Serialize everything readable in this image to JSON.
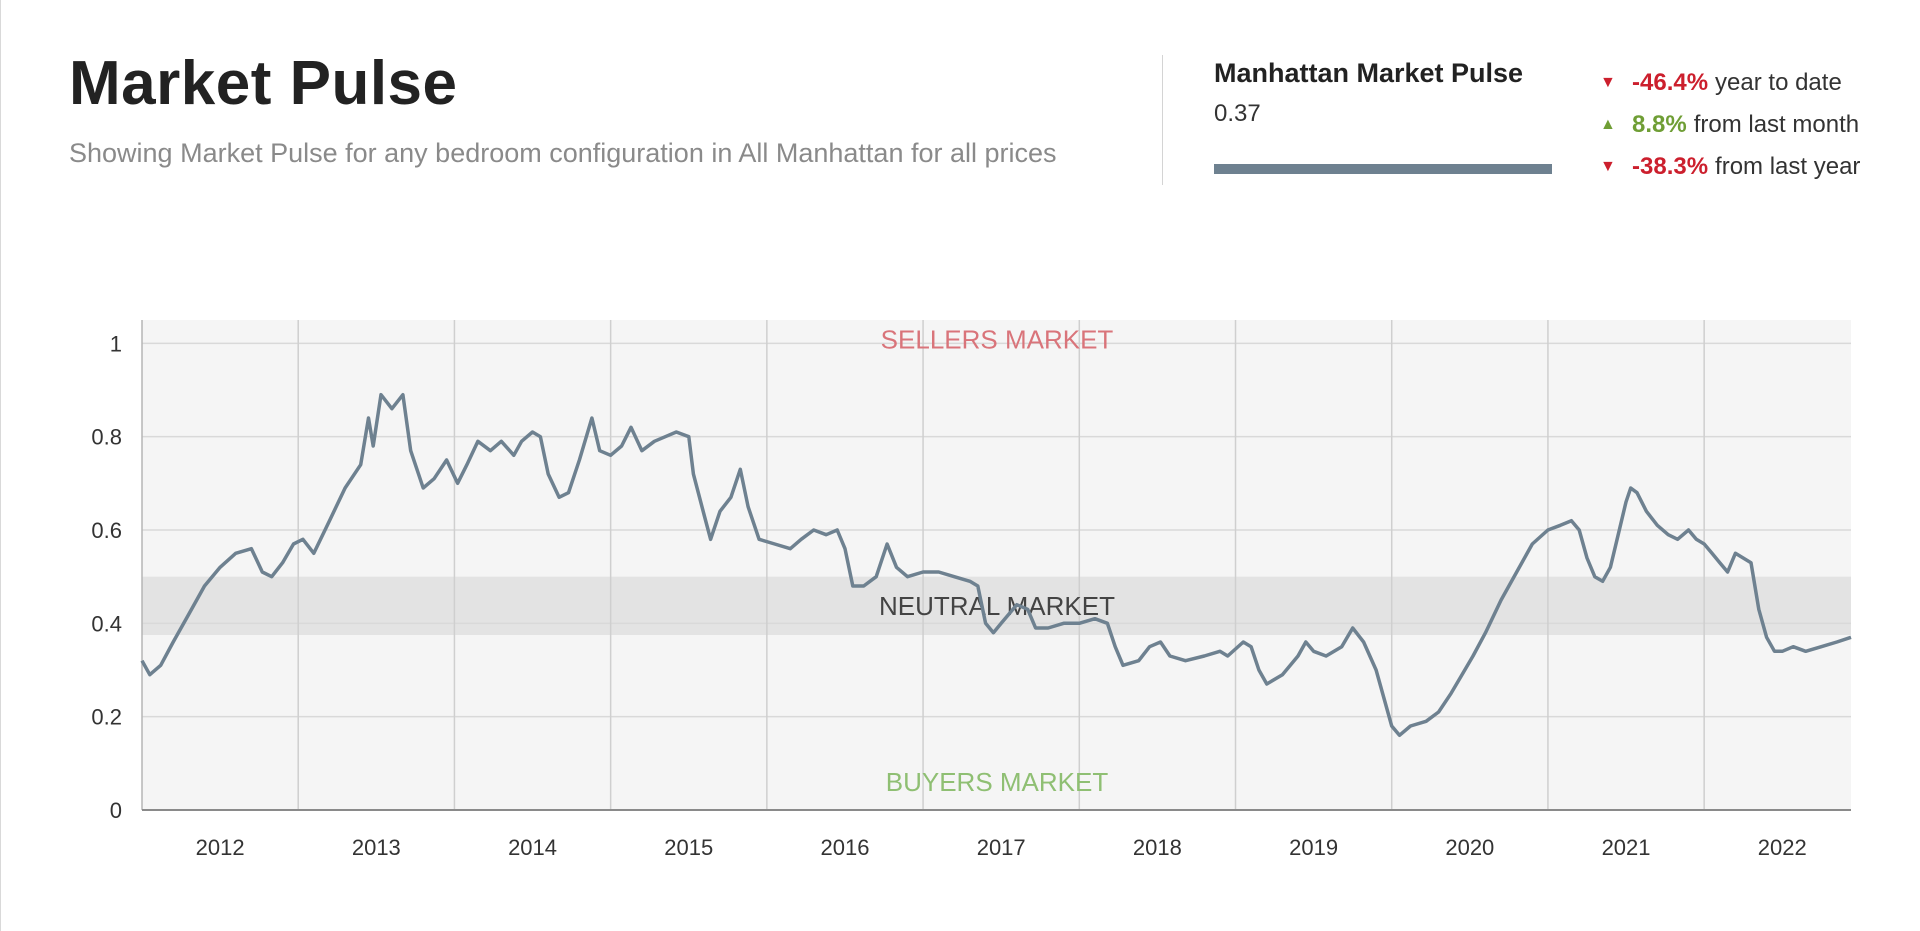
{
  "header": {
    "title": "Market Pulse",
    "subtitle": "Showing Market Pulse for any bedroom configuration in All Manhattan for all prices"
  },
  "summary": {
    "title": "Manhattan Market Pulse",
    "value": "0.37",
    "value_fraction": 0.37,
    "bar_color": "#6e8190",
    "changes": [
      {
        "direction": "down",
        "icon": "down-triangle-icon",
        "percent": "-46.4%",
        "label": "year to date",
        "color": "#cc1f2d"
      },
      {
        "direction": "up",
        "icon": "up-triangle-icon",
        "percent": "8.8%",
        "label": "from last month",
        "color": "#6f9e35"
      },
      {
        "direction": "down",
        "icon": "down-triangle-icon",
        "percent": "-38.3%",
        "label": "from last year",
        "color": "#cc1f2d"
      }
    ]
  },
  "chart_data": {
    "type": "line",
    "title": "",
    "xlabel": "",
    "ylabel": "",
    "ylim": [
      0,
      1.05
    ],
    "xlim": [
      2011.5,
      2022.44
    ],
    "yticks": [
      0,
      0.2,
      0.4,
      0.6,
      0.8,
      1
    ],
    "ytick_labels": [
      "0",
      "0.2",
      "0.4",
      "0.6",
      "0.8",
      "1"
    ],
    "xtick_labels": [
      "2012",
      "2013",
      "2014",
      "2015",
      "2016",
      "2017",
      "2018",
      "2019",
      "2020",
      "2021",
      "2022"
    ],
    "xtick_positions": [
      2012,
      2013,
      2014,
      2015,
      2016,
      2017,
      2018,
      2019,
      2020,
      2021,
      2022
    ],
    "x_gridlines": [
      2012.5,
      2013.5,
      2014.5,
      2015.5,
      2016.5,
      2017.5,
      2018.5,
      2019.5,
      2020.5,
      2021.5
    ],
    "grid": true,
    "neutral_band": [
      0.375,
      0.5
    ],
    "zones": {
      "sellers": "SELLERS MARKET",
      "neutral": "NEUTRAL MARKET",
      "buyers": "BUYERS MARKET"
    },
    "zone_colors": {
      "sellers": "#d9747a",
      "neutral": "#444444",
      "buyers": "#8fbf73"
    },
    "line_color": "#6e8190",
    "series": [
      {
        "points": [
          [
            2011.5,
            0.32
          ],
          [
            2011.55,
            0.29
          ],
          [
            2011.62,
            0.31
          ],
          [
            2011.7,
            0.36
          ],
          [
            2011.8,
            0.42
          ],
          [
            2011.9,
            0.48
          ],
          [
            2012.0,
            0.52
          ],
          [
            2012.1,
            0.55
          ],
          [
            2012.2,
            0.56
          ],
          [
            2012.27,
            0.51
          ],
          [
            2012.33,
            0.5
          ],
          [
            2012.4,
            0.53
          ],
          [
            2012.47,
            0.57
          ],
          [
            2012.53,
            0.58
          ],
          [
            2012.6,
            0.55
          ],
          [
            2012.7,
            0.62
          ],
          [
            2012.8,
            0.69
          ],
          [
            2012.9,
            0.74
          ],
          [
            2012.95,
            0.84
          ],
          [
            2012.98,
            0.78
          ],
          [
            2013.03,
            0.89
          ],
          [
            2013.1,
            0.86
          ],
          [
            2013.17,
            0.89
          ],
          [
            2013.22,
            0.77
          ],
          [
            2013.3,
            0.69
          ],
          [
            2013.37,
            0.71
          ],
          [
            2013.45,
            0.75
          ],
          [
            2013.52,
            0.7
          ],
          [
            2013.58,
            0.74
          ],
          [
            2013.65,
            0.79
          ],
          [
            2013.73,
            0.77
          ],
          [
            2013.8,
            0.79
          ],
          [
            2013.88,
            0.76
          ],
          [
            2013.93,
            0.79
          ],
          [
            2014.0,
            0.81
          ],
          [
            2014.05,
            0.8
          ],
          [
            2014.1,
            0.72
          ],
          [
            2014.17,
            0.67
          ],
          [
            2014.23,
            0.68
          ],
          [
            2014.3,
            0.75
          ],
          [
            2014.38,
            0.84
          ],
          [
            2014.43,
            0.77
          ],
          [
            2014.5,
            0.76
          ],
          [
            2014.57,
            0.78
          ],
          [
            2014.63,
            0.82
          ],
          [
            2014.7,
            0.77
          ],
          [
            2014.78,
            0.79
          ],
          [
            2014.85,
            0.8
          ],
          [
            2014.92,
            0.81
          ],
          [
            2015.0,
            0.8
          ],
          [
            2015.03,
            0.72
          ],
          [
            2015.1,
            0.63
          ],
          [
            2015.14,
            0.58
          ],
          [
            2015.2,
            0.64
          ],
          [
            2015.27,
            0.67
          ],
          [
            2015.33,
            0.73
          ],
          [
            2015.38,
            0.65
          ],
          [
            2015.45,
            0.58
          ],
          [
            2015.55,
            0.57
          ],
          [
            2015.65,
            0.56
          ],
          [
            2015.72,
            0.58
          ],
          [
            2015.8,
            0.6
          ],
          [
            2015.88,
            0.59
          ],
          [
            2015.95,
            0.6
          ],
          [
            2016.0,
            0.56
          ],
          [
            2016.05,
            0.48
          ],
          [
            2016.12,
            0.48
          ],
          [
            2016.2,
            0.5
          ],
          [
            2016.27,
            0.57
          ],
          [
            2016.33,
            0.52
          ],
          [
            2016.4,
            0.5
          ],
          [
            2016.5,
            0.51
          ],
          [
            2016.6,
            0.51
          ],
          [
            2016.7,
            0.5
          ],
          [
            2016.8,
            0.49
          ],
          [
            2016.85,
            0.48
          ],
          [
            2016.9,
            0.4
          ],
          [
            2016.95,
            0.38
          ],
          [
            2017.0,
            0.4
          ],
          [
            2017.05,
            0.42
          ],
          [
            2017.1,
            0.44
          ],
          [
            2017.17,
            0.43
          ],
          [
            2017.22,
            0.39
          ],
          [
            2017.3,
            0.39
          ],
          [
            2017.4,
            0.4
          ],
          [
            2017.5,
            0.4
          ],
          [
            2017.6,
            0.41
          ],
          [
            2017.68,
            0.4
          ],
          [
            2017.73,
            0.35
          ],
          [
            2017.78,
            0.31
          ],
          [
            2017.88,
            0.32
          ],
          [
            2017.95,
            0.35
          ],
          [
            2018.02,
            0.36
          ],
          [
            2018.08,
            0.33
          ],
          [
            2018.18,
            0.32
          ],
          [
            2018.3,
            0.33
          ],
          [
            2018.4,
            0.34
          ],
          [
            2018.45,
            0.33
          ],
          [
            2018.55,
            0.36
          ],
          [
            2018.6,
            0.35
          ],
          [
            2018.65,
            0.3
          ],
          [
            2018.7,
            0.27
          ],
          [
            2018.8,
            0.29
          ],
          [
            2018.9,
            0.33
          ],
          [
            2018.95,
            0.36
          ],
          [
            2019.0,
            0.34
          ],
          [
            2019.08,
            0.33
          ],
          [
            2019.18,
            0.35
          ],
          [
            2019.25,
            0.39
          ],
          [
            2019.32,
            0.36
          ],
          [
            2019.4,
            0.3
          ],
          [
            2019.45,
            0.24
          ],
          [
            2019.5,
            0.18
          ],
          [
            2019.55,
            0.16
          ],
          [
            2019.62,
            0.18
          ],
          [
            2019.72,
            0.19
          ],
          [
            2019.8,
            0.21
          ],
          [
            2019.88,
            0.25
          ],
          [
            2019.95,
            0.29
          ],
          [
            2020.02,
            0.33
          ],
          [
            2020.1,
            0.38
          ],
          [
            2020.2,
            0.45
          ],
          [
            2020.3,
            0.51
          ],
          [
            2020.4,
            0.57
          ],
          [
            2020.5,
            0.6
          ],
          [
            2020.58,
            0.61
          ],
          [
            2020.65,
            0.62
          ],
          [
            2020.7,
            0.6
          ],
          [
            2020.75,
            0.54
          ],
          [
            2020.8,
            0.5
          ],
          [
            2020.85,
            0.49
          ],
          [
            2020.9,
            0.52
          ],
          [
            2020.95,
            0.59
          ],
          [
            2021.0,
            0.66
          ],
          [
            2021.03,
            0.69
          ],
          [
            2021.07,
            0.68
          ],
          [
            2021.13,
            0.64
          ],
          [
            2021.2,
            0.61
          ],
          [
            2021.27,
            0.59
          ],
          [
            2021.33,
            0.58
          ],
          [
            2021.4,
            0.6
          ],
          [
            2021.45,
            0.58
          ],
          [
            2021.5,
            0.57
          ],
          [
            2021.55,
            0.55
          ],
          [
            2021.6,
            0.53
          ],
          [
            2021.65,
            0.51
          ],
          [
            2021.7,
            0.55
          ],
          [
            2021.75,
            0.54
          ],
          [
            2021.8,
            0.53
          ],
          [
            2021.85,
            0.43
          ],
          [
            2021.9,
            0.37
          ],
          [
            2021.95,
            0.34
          ],
          [
            2022.0,
            0.34
          ],
          [
            2022.07,
            0.35
          ],
          [
            2022.15,
            0.34
          ],
          [
            2022.25,
            0.35
          ],
          [
            2022.35,
            0.36
          ],
          [
            2022.44,
            0.37
          ]
        ]
      }
    ]
  }
}
